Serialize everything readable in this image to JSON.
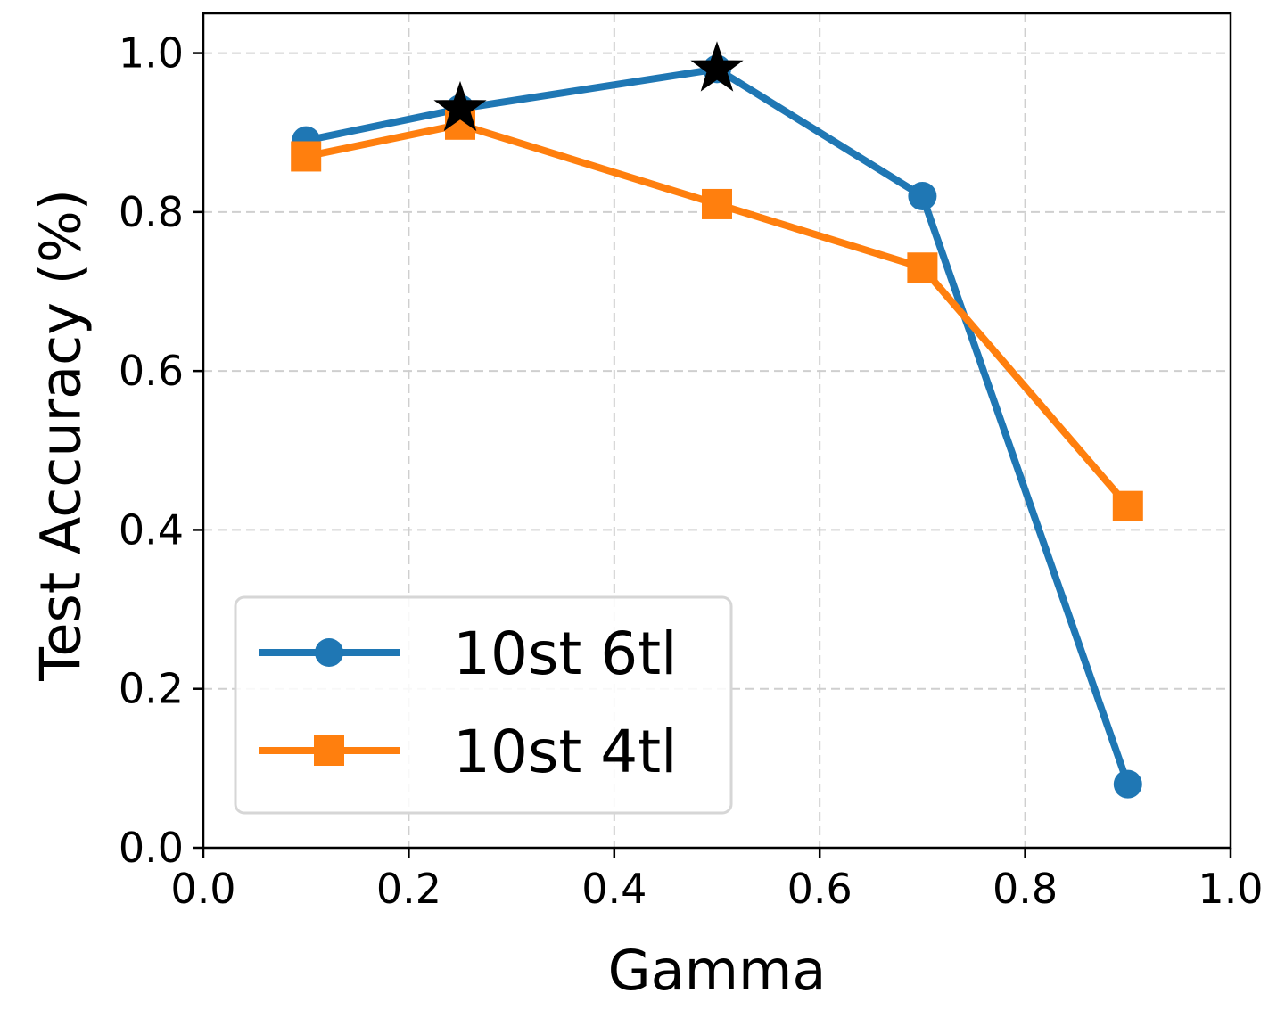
{
  "chart_data": {
    "type": "line",
    "xlabel": "Gamma",
    "ylabel": "Test Accuracy (%)",
    "xlim": [
      0.0,
      1.0
    ],
    "ylim": [
      0.0,
      1.05
    ],
    "xticks": [
      0.0,
      0.2,
      0.4,
      0.6,
      0.8,
      1.0
    ],
    "yticks": [
      0.0,
      0.2,
      0.4,
      0.6,
      0.8,
      1.0
    ],
    "xtick_labels": [
      "0.0",
      "0.2",
      "0.4",
      "0.6",
      "0.8",
      "1.0"
    ],
    "ytick_labels": [
      "0.0",
      "0.2",
      "0.4",
      "0.6",
      "0.8",
      "1.0"
    ],
    "grid": true,
    "legend_position": "lower-left",
    "series": [
      {
        "name": "10st 6tl",
        "marker": "circle",
        "color": "#1f77b4",
        "x": [
          0.1,
          0.25,
          0.5,
          0.7,
          0.9
        ],
        "y": [
          0.89,
          0.93,
          0.98,
          0.82,
          0.08
        ]
      },
      {
        "name": "10st 4tl",
        "marker": "square",
        "color": "#ff7f0e",
        "x": [
          0.1,
          0.25,
          0.5,
          0.7,
          0.9
        ],
        "y": [
          0.87,
          0.91,
          0.81,
          0.73,
          0.43
        ]
      }
    ],
    "annotations": [
      {
        "marker": "star",
        "color": "#000000",
        "x": 0.25,
        "y": 0.93
      },
      {
        "marker": "star",
        "color": "#000000",
        "x": 0.5,
        "y": 0.98
      }
    ]
  }
}
